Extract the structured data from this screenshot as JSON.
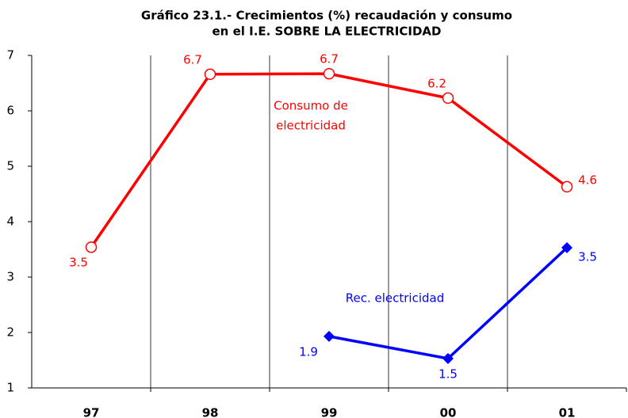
{
  "chart_data": {
    "type": "line",
    "title": [
      "Gráfico 23.1.- Crecimientos (%) recaudación y consumo",
      "en el I.E. SOBRE LA ELECTRICIDAD"
    ],
    "categories": [
      "97",
      "98",
      "99",
      "00",
      "01"
    ],
    "series": [
      {
        "name": "Consumo de electricidad",
        "annotation": [
          "Consumo de",
          "electricidad"
        ],
        "color": "#ff0000",
        "marker": "circle",
        "values": [
          3.54,
          6.66,
          6.67,
          6.23,
          4.63
        ],
        "value_labels": [
          "3.5",
          "6.7",
          "6.7",
          "6.2",
          "4.6"
        ]
      },
      {
        "name": "Rec. electricidad",
        "annotation": [
          "Rec. electricidad"
        ],
        "color": "#0000ff",
        "marker": "diamond",
        "values": [
          null,
          null,
          1.93,
          1.53,
          3.53
        ],
        "value_labels": [
          null,
          null,
          "1.9",
          "1.5",
          "3.5"
        ]
      }
    ],
    "ylim": [
      1,
      7
    ],
    "yticks": [
      1,
      2,
      3,
      4,
      5,
      6,
      7
    ]
  }
}
